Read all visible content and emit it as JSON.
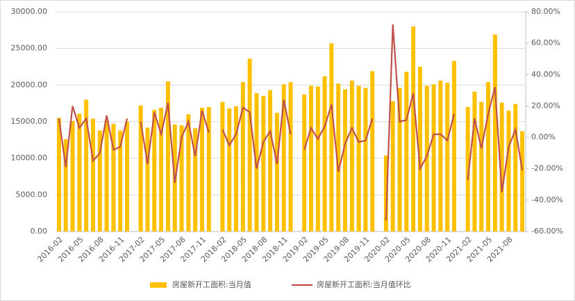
{
  "chart_data": {
    "type": "bar_line",
    "categories": [
      "2016-02",
      null,
      null,
      "2016-05",
      null,
      null,
      "2016-08",
      null,
      null,
      "2016-11",
      null,
      null,
      "2017-02",
      null,
      null,
      "2017-05",
      null,
      null,
      "2017-08",
      null,
      null,
      "2017-11",
      null,
      null,
      "2018-02",
      null,
      null,
      "2018-05",
      null,
      null,
      "2018-08",
      null,
      null,
      "2018-11",
      null,
      null,
      "2019-02",
      null,
      null,
      "2019-05",
      null,
      null,
      "2019-08",
      null,
      null,
      "2019-11",
      null,
      null,
      "2020-02",
      null,
      null,
      "2020-05",
      null,
      null,
      "2020-08",
      null,
      null,
      "2020-11",
      null,
      null,
      "2021-02",
      null,
      null,
      "2021-05",
      null,
      null,
      "2021-08",
      null,
      null
    ],
    "series": [
      {
        "name": "房屋新开工面积:当月值",
        "color": "#ffc000",
        "values": [
          15500,
          12600,
          15100,
          16100,
          18000,
          15400,
          13800,
          15200,
          14700,
          13800,
          15000,
          null,
          17200,
          14200,
          16600,
          16900,
          20500,
          14600,
          14500,
          16000,
          14100,
          16900,
          17000,
          null,
          17700,
          16800,
          17100,
          20400,
          23600,
          18900,
          18500,
          19300,
          16200,
          20100,
          20400,
          null,
          18700,
          19900,
          19800,
          21200,
          25700,
          20200,
          19400,
          20600,
          19900,
          19600,
          21900,
          null,
          10400,
          17800,
          19600,
          21800,
          28000,
          22500,
          19900,
          20100,
          20600,
          20300,
          23300,
          null,
          17000,
          19100,
          17700,
          20400,
          26900,
          17600,
          16500,
          17400,
          13700
        ]
      },
      {
        "name": "房屋新开工面积:当月值环比",
        "color": "#c0504d",
        "axis": "y2",
        "values": [
          12,
          -19,
          20,
          6,
          12,
          -15,
          -10,
          14,
          -8,
          -6,
          12,
          null,
          10,
          -17,
          16,
          2,
          22,
          -29,
          0,
          10,
          -12,
          17,
          3,
          null,
          5,
          -5,
          2,
          19,
          16,
          -20,
          -3,
          4,
          -17,
          24,
          2,
          null,
          -8,
          6,
          -1,
          7,
          21,
          -22,
          -4,
          6,
          -3,
          -2,
          12,
          null,
          -53,
          72,
          10,
          11,
          28,
          -20,
          -12,
          2,
          2,
          -2,
          15,
          null,
          -27,
          12,
          -7,
          15,
          32,
          -35,
          -6,
          5,
          -21
        ]
      }
    ],
    "ylim": [
      0,
      30000
    ],
    "yticks": [
      {
        "value": 0,
        "label": "0.00"
      },
      {
        "value": 5000,
        "label": "5000.00"
      },
      {
        "value": 10000,
        "label": "10000.00"
      },
      {
        "value": 15000,
        "label": "15000.00"
      },
      {
        "value": 20000,
        "label": "20000.00"
      },
      {
        "value": 25000,
        "label": "25000.00"
      },
      {
        "value": 30000,
        "label": "30000.00"
      }
    ],
    "y2lim": [
      -60,
      80
    ],
    "y2ticks": [
      {
        "value": -60,
        "label": "-60.00%"
      },
      {
        "value": -40,
        "label": "-40.00%"
      },
      {
        "value": -20,
        "label": "-20.00%"
      },
      {
        "value": 0,
        "label": "0.00%"
      },
      {
        "value": 20,
        "label": "20.00%"
      },
      {
        "value": 40,
        "label": "40.00%"
      },
      {
        "value": 60,
        "label": "60.00%"
      },
      {
        "value": 80,
        "label": "80.00%"
      }
    ],
    "grid": true,
    "legend": "bottom"
  }
}
